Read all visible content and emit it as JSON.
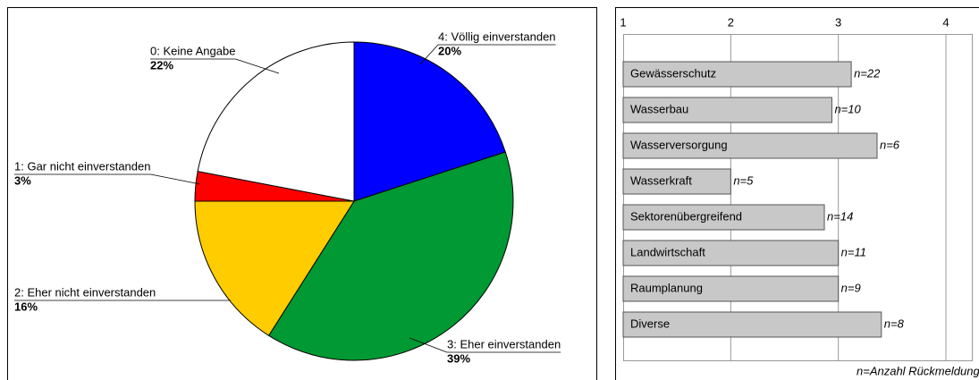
{
  "chart_data": [
    {
      "type": "pie",
      "categories": [
        "4: Völlig einverstanden",
        "3: Eher einverstanden",
        "2: Eher nicht einverstanden",
        "1: Gar nicht einverstanden",
        "0: Keine Angabe"
      ],
      "values": [
        20,
        39,
        16,
        3,
        22
      ],
      "value_labels": [
        "20%",
        "39%",
        "16%",
        "3%",
        "22%"
      ],
      "colors": [
        "#0000ff",
        "#009933",
        "#ffcc00",
        "#ff0000",
        "#ffffff"
      ]
    },
    {
      "type": "hbar",
      "categories": [
        "Gewässerschutz",
        "Wasserbau",
        "Wasserversorgung",
        "Wasserkraft",
        "Sektorenübergreifend",
        "Landwirtschaft",
        "Raumplanung",
        "Diverse"
      ],
      "values": [
        3.12,
        2.94,
        3.36,
        2.0,
        2.87,
        3.0,
        3.0,
        3.4
      ],
      "annotations": [
        "n=22",
        "n=10",
        "n=6",
        "n=5",
        "n=14",
        "n=11",
        "n=9",
        "n=8"
      ],
      "note": "n=Anzahl Rückmeldungen",
      "color": "#c8c8c8",
      "xlim": [
        1,
        4
      ],
      "xticks": [
        1,
        2,
        3,
        4
      ],
      "grid": true
    }
  ]
}
